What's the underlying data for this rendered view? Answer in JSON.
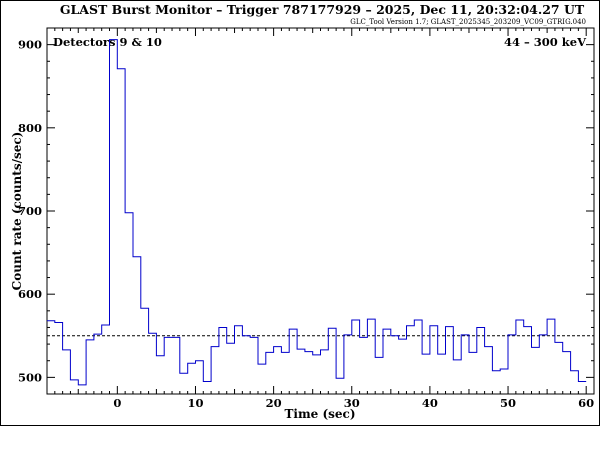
{
  "chart_data": {
    "type": "line",
    "title": "GLAST Burst Monitor  –  Trigger 787177929  –  2025, Dec 11, 20:32:04.27 UT",
    "subtitle": "GLC_Tool Version 1.7; GLAST_2025345_203209_VC09_GTRIG.040",
    "left_annotation": "Detectors 9 & 10",
    "right_annotation": "44 – 300 keV",
    "xlabel": "Time (sec)",
    "ylabel": "Count rate (counts/sec)",
    "xlim": [
      -9,
      61
    ],
    "ylim": [
      480,
      920
    ],
    "xticks": [
      0,
      10,
      20,
      30,
      40,
      50,
      60
    ],
    "yticks": [
      500,
      600,
      700,
      800,
      900
    ],
    "background_level": 550,
    "bin_width": 1,
    "bin_start": -9,
    "series": [
      {
        "color": "#0000cc",
        "values": [
          568,
          566,
          533,
          497,
          491,
          545,
          552,
          563,
          906,
          871,
          698,
          645,
          583,
          553,
          526,
          548,
          548,
          505,
          517,
          520,
          495,
          537,
          560,
          541,
          562,
          550,
          548,
          516,
          530,
          537,
          530,
          558,
          534,
          531,
          527,
          533,
          559,
          499,
          551,
          569,
          548,
          570,
          524,
          558,
          550,
          546,
          562,
          569,
          528,
          562,
          528,
          561,
          521,
          551,
          530,
          560,
          537,
          508,
          510,
          551,
          569,
          561,
          536,
          551,
          570,
          542,
          531,
          508,
          495
        ]
      }
    ],
    "grid": false,
    "legend": "none"
  }
}
